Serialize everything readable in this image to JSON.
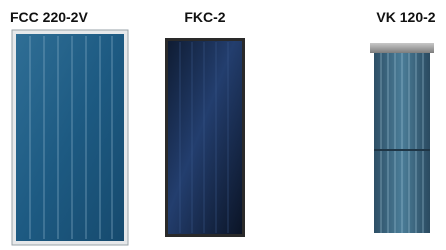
{
  "products": [
    {
      "name": "FCC 220-2V"
    },
    {
      "name": "FKC-2"
    },
    {
      "name": "VK 120-2"
    }
  ]
}
